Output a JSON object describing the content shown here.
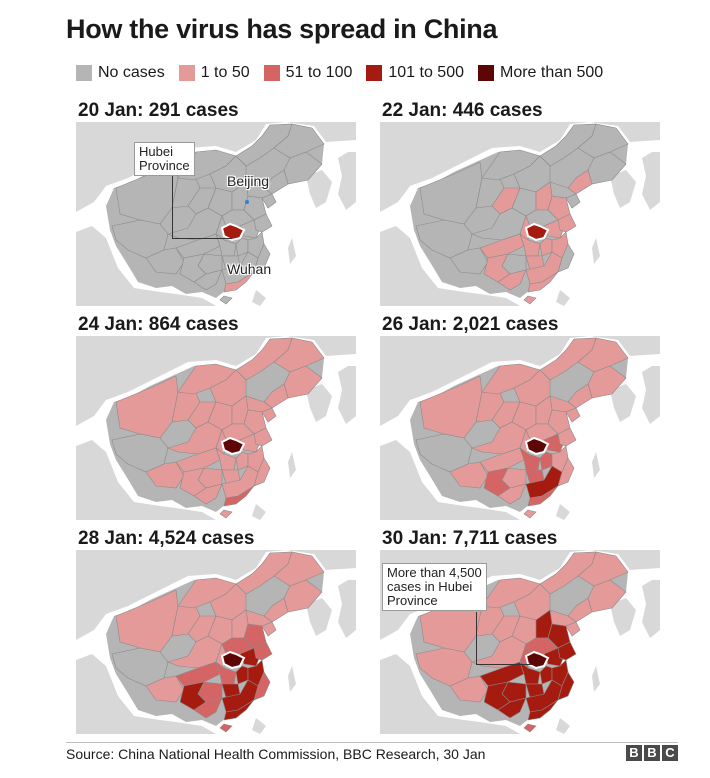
{
  "title": "How the virus has spread in China",
  "legend": [
    {
      "label": "No cases",
      "color": "#b5b5b5"
    },
    {
      "label": "1 to 50",
      "color": "#e59a9a"
    },
    {
      "label": "51 to 100",
      "color": "#d56565"
    },
    {
      "label": "101 to 500",
      "color": "#a61b10"
    },
    {
      "label": "More than 500",
      "color": "#5c0606"
    }
  ],
  "panels": [
    {
      "title": "20 Jan: 291 cases",
      "levels": [
        0,
        0,
        0,
        0,
        0,
        0,
        0,
        0,
        0,
        0,
        0,
        0,
        0,
        0,
        0,
        0,
        0,
        0,
        0,
        0,
        0,
        0,
        0,
        0,
        0,
        0,
        0,
        0,
        0,
        0,
        1,
        0,
        0,
        3
      ]
    },
    {
      "title": "22 Jan: 446 cases",
      "levels": [
        0,
        0,
        0,
        0,
        0,
        0,
        0,
        0,
        1,
        0,
        0,
        0,
        1,
        1,
        1,
        0,
        0,
        1,
        1,
        1,
        1,
        1,
        1,
        1,
        0,
        0,
        1,
        1,
        1,
        1,
        1,
        1,
        0,
        3
      ]
    },
    {
      "title": "24 Jan: 864 cases",
      "levels": [
        1,
        0,
        1,
        1,
        1,
        1,
        1,
        1,
        1,
        1,
        1,
        1,
        1,
        1,
        1,
        1,
        1,
        1,
        1,
        1,
        1,
        1,
        1,
        1,
        1,
        1,
        1,
        1,
        1,
        1,
        2,
        1,
        1,
        4
      ]
    },
    {
      "title": "26 Jan: 2,021 cases",
      "levels": [
        1,
        0,
        1,
        1,
        1,
        1,
        1,
        1,
        1,
        1,
        1,
        1,
        1,
        1,
        1,
        1,
        1,
        1,
        2,
        1,
        1,
        2,
        2,
        1,
        1,
        1,
        2,
        2,
        1,
        3,
        2,
        1,
        1,
        4
      ]
    },
    {
      "title": "28 Jan: 4,524 cases",
      "levels": [
        1,
        0,
        1,
        1,
        1,
        1,
        1,
        1,
        1,
        1,
        1,
        1,
        1,
        1,
        2,
        2,
        1,
        1,
        3,
        2,
        2,
        2,
        3,
        3,
        2,
        2,
        3,
        3,
        2,
        3,
        3,
        2,
        1,
        4
      ]
    },
    {
      "title": "30 Jan: 7,711 cases",
      "levels": [
        1,
        1,
        1,
        1,
        1,
        1,
        1,
        1,
        1,
        1,
        1,
        1,
        1,
        3,
        3,
        2,
        1,
        2,
        3,
        3,
        3,
        3,
        3,
        3,
        3,
        3,
        3,
        3,
        3,
        3,
        3,
        2,
        1,
        4
      ]
    }
  ],
  "annotations": {
    "hubei_province": "Hubei\nProvince",
    "beijing": "Beijing",
    "wuhan": "Wuhan",
    "hubei_total": "More than 4,500\ncases in Hubei\nProvince"
  },
  "footer": {
    "source": "Source: China National Health Commission, BBC Research, 30 Jan",
    "logo_letters": [
      "B",
      "B",
      "C"
    ]
  }
}
